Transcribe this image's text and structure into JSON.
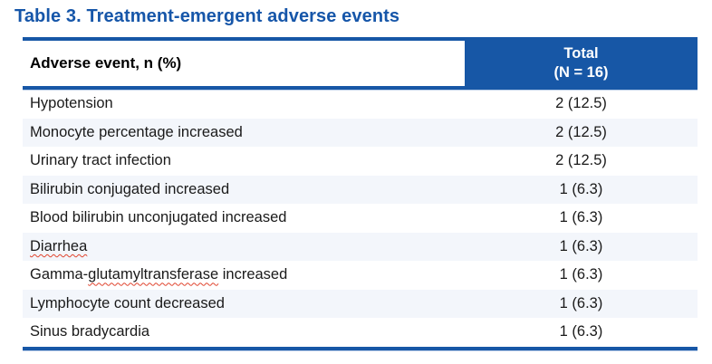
{
  "title": "Table 3. Treatment-emergent adverse events",
  "table": {
    "header": {
      "event_column": "Adverse event, n (%)",
      "total_column_line1": "Total",
      "total_column_line2": "(N = 16)"
    },
    "rows": [
      {
        "event_parts": [
          {
            "text": "Hypotension",
            "misspelled": false
          }
        ],
        "value": "2 (12.5)"
      },
      {
        "event_parts": [
          {
            "text": "Monocyte percentage increased",
            "misspelled": false
          }
        ],
        "value": "2 (12.5)"
      },
      {
        "event_parts": [
          {
            "text": "Urinary tract infection",
            "misspelled": false
          }
        ],
        "value": "2 (12.5)"
      },
      {
        "event_parts": [
          {
            "text": "Bilirubin conjugated increased",
            "misspelled": false
          }
        ],
        "value": "1 (6.3)"
      },
      {
        "event_parts": [
          {
            "text": "Blood bilirubin unconjugated increased",
            "misspelled": false
          }
        ],
        "value": "1 (6.3)"
      },
      {
        "event_parts": [
          {
            "text": "Diarrhea",
            "misspelled": true
          }
        ],
        "value": "1 (6.3)"
      },
      {
        "event_parts": [
          {
            "text": "Gamma-",
            "misspelled": false
          },
          {
            "text": "glutamyltransferase",
            "misspelled": true
          },
          {
            "text": " increased",
            "misspelled": false
          }
        ],
        "value": "1 (6.3)"
      },
      {
        "event_parts": [
          {
            "text": "Lymphocyte count decreased",
            "misspelled": false
          }
        ],
        "value": "1 (6.3)"
      },
      {
        "event_parts": [
          {
            "text": "Sinus bradycardia",
            "misspelled": false
          }
        ],
        "value": "1 (6.3)"
      }
    ]
  },
  "colors": {
    "table_blue": "#1757a6",
    "title_blue": "#1656a9",
    "alt_row_background": "#f3f6fb",
    "spellcheck_red": "#e0442e",
    "body_text": "#1a1a1a"
  }
}
